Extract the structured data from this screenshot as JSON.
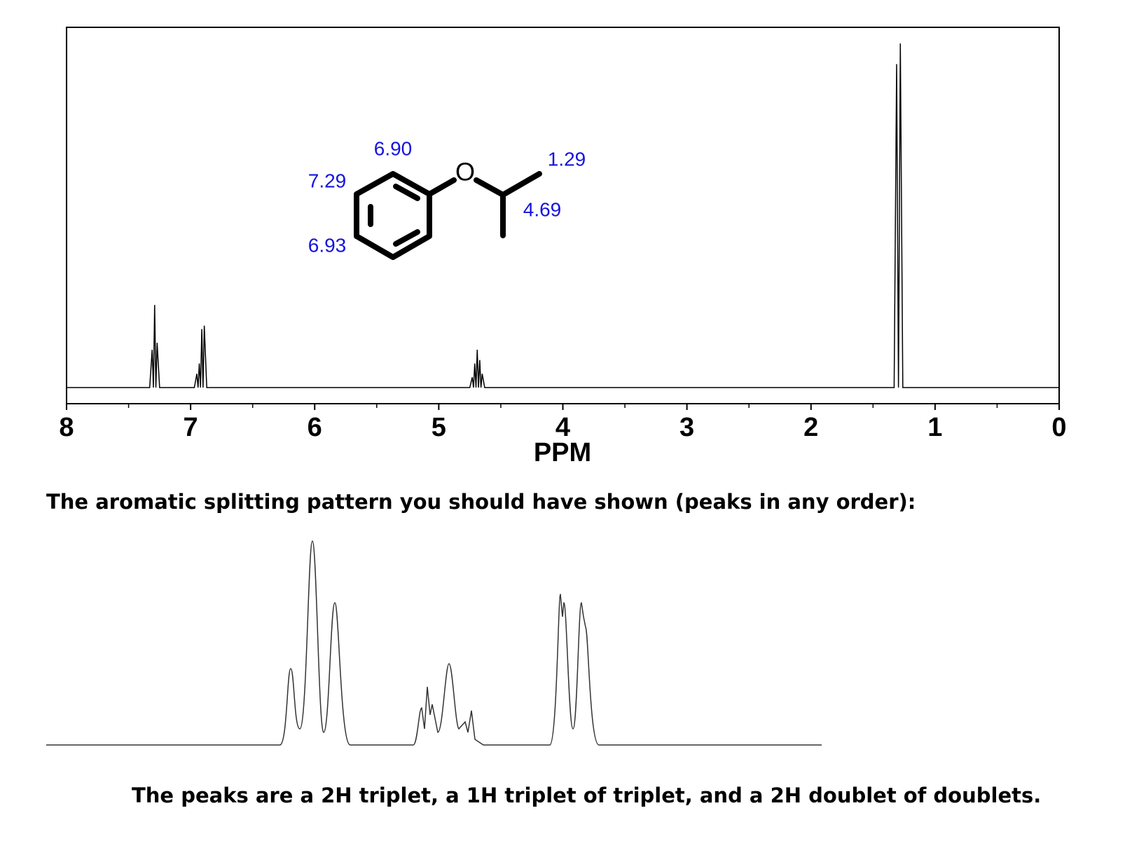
{
  "chart_data": {
    "type": "line",
    "x_label": "PPM",
    "xlim": [
      8,
      0
    ],
    "xticks": [
      8,
      7,
      6,
      5,
      4,
      3,
      2,
      1,
      0
    ],
    "ylim": [
      0,
      100
    ],
    "color": "#000000",
    "x": [
      8,
      7.33,
      7.31,
      7.3,
      7.29,
      7.28,
      7.27,
      7.25,
      6.97,
      6.95,
      6.94,
      6.93,
      6.92,
      6.91,
      6.9,
      6.89,
      6.87,
      4.75,
      4.73,
      4.72,
      4.71,
      4.7,
      4.69,
      4.68,
      4.67,
      4.66,
      4.65,
      4.63,
      1.33,
      1.31,
      1.295,
      1.28,
      1.26,
      0
    ],
    "values": [
      0,
      0,
      11,
      0,
      24,
      0,
      13,
      0,
      0,
      4,
      0,
      7,
      0,
      17,
      0,
      18,
      0,
      0,
      3,
      0,
      7,
      0,
      11,
      0,
      8,
      0,
      4,
      0,
      0,
      94,
      0,
      100,
      0,
      0
    ],
    "annotations": [
      "6.90",
      "7.29",
      "6.93",
      "1.29",
      "4.69",
      "O"
    ]
  },
  "captions": [
    "The aromatic splitting pattern you should have shown (peaks in any order):",
    "The peaks are a 2H triplet, a 1H triplet of triplet, and a 2H doublet of doublets."
  ]
}
